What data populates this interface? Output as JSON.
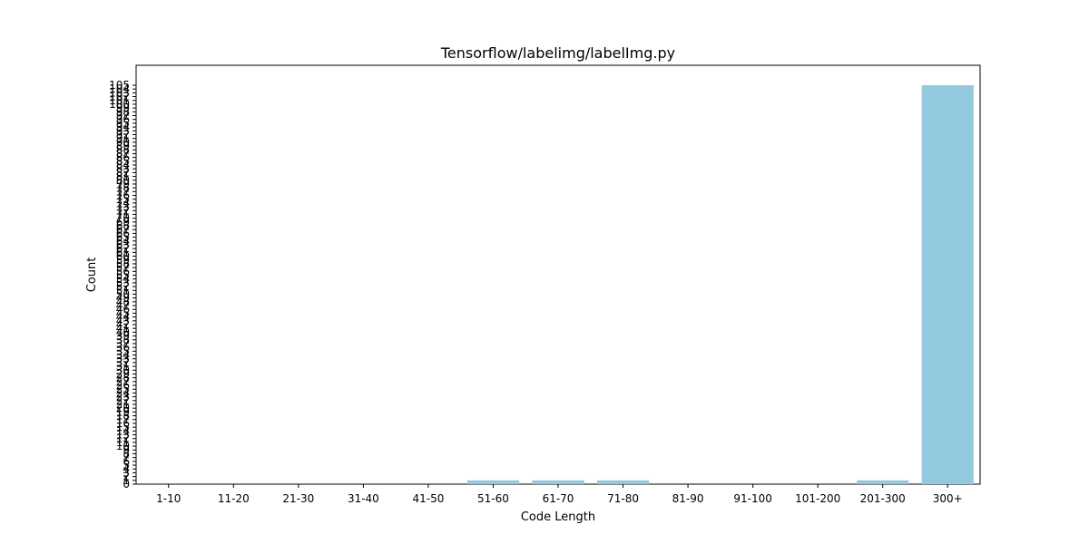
{
  "chart_data": {
    "type": "bar",
    "title": "Tensorflow/labelimg/labelImg.py",
    "xlabel": "Code Length",
    "ylabel": "Count",
    "categories": [
      "1-10",
      "11-20",
      "21-30",
      "31-40",
      "41-50",
      "51-60",
      "61-70",
      "71-80",
      "81-90",
      "91-100",
      "101-200",
      "201-300",
      "300+"
    ],
    "values": [
      0,
      0,
      0,
      0,
      0,
      1,
      1,
      1,
      0,
      0,
      0,
      1,
      105
    ],
    "ylim": [
      0,
      110
    ],
    "yticks": [
      0,
      1,
      2,
      3,
      4,
      5,
      6,
      7,
      8,
      9,
      10,
      11,
      12,
      13,
      14,
      15,
      16,
      17,
      18,
      19,
      20,
      21,
      22,
      23,
      24,
      25,
      26,
      27,
      28,
      29,
      30,
      31,
      32,
      33,
      34,
      35,
      36,
      37,
      38,
      39,
      40,
      41,
      42,
      43,
      44,
      45,
      46,
      47,
      48,
      49,
      50,
      51,
      52,
      53,
      54,
      55,
      56,
      57,
      58,
      59,
      60,
      61,
      62,
      63,
      64,
      65,
      66,
      67,
      68,
      69,
      70,
      71,
      72,
      73,
      74,
      75,
      76,
      77,
      78,
      79,
      80,
      81,
      82,
      83,
      84,
      85,
      86,
      87,
      88,
      89,
      90,
      91,
      92,
      93,
      94,
      95,
      96,
      97,
      98,
      99,
      100,
      101,
      102,
      103,
      104,
      105
    ],
    "bar_color": "#92c9de",
    "grid": false
  }
}
